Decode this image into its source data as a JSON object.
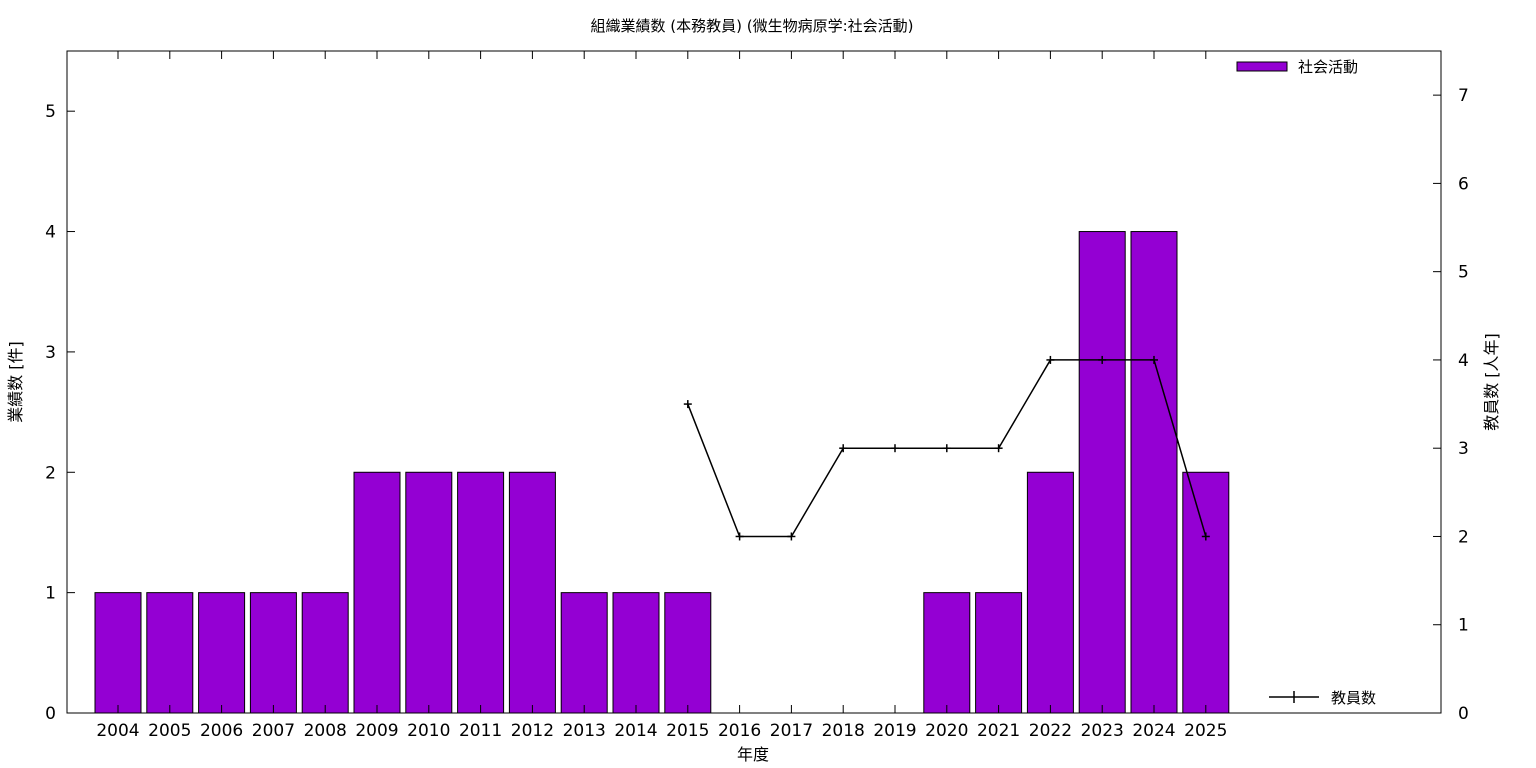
{
  "chart_data": {
    "type": "bar",
    "title": "組織業績数 (本務教員) (微生物病原学:社会活動)",
    "xlabel": "年度",
    "ylabel": "業績数 [件]",
    "y2label": "教員数 [人年]",
    "categories": [
      "2004",
      "2005",
      "2006",
      "2007",
      "2008",
      "2009",
      "2010",
      "2011",
      "2012",
      "2013",
      "2014",
      "2015",
      "2016",
      "2017",
      "2018",
      "2019",
      "2020",
      "2021",
      "2022",
      "2023",
      "2024",
      "2025"
    ],
    "ylim": [
      0,
      5.5
    ],
    "yticks": [
      0,
      1,
      2,
      3,
      4,
      5
    ],
    "y2lim": [
      0,
      7.5
    ],
    "y2ticks": [
      0,
      1,
      2,
      3,
      4,
      5,
      6,
      7
    ],
    "grid": false,
    "legend_position": "top-right / bottom-right",
    "series": [
      {
        "name": "社会活動",
        "type": "bar",
        "axis": "left",
        "color": "#9400d3",
        "values": [
          1,
          1,
          1,
          1,
          1,
          2,
          2,
          2,
          2,
          1,
          1,
          1,
          0,
          0,
          0,
          0,
          1,
          1,
          2,
          4,
          4,
          2
        ]
      },
      {
        "name": "教員数",
        "type": "line",
        "axis": "right",
        "color": "#000000",
        "values": [
          null,
          null,
          null,
          null,
          null,
          null,
          null,
          null,
          null,
          null,
          null,
          3.5,
          2,
          2,
          3,
          3,
          3,
          3,
          4,
          4,
          4,
          2
        ]
      }
    ]
  }
}
